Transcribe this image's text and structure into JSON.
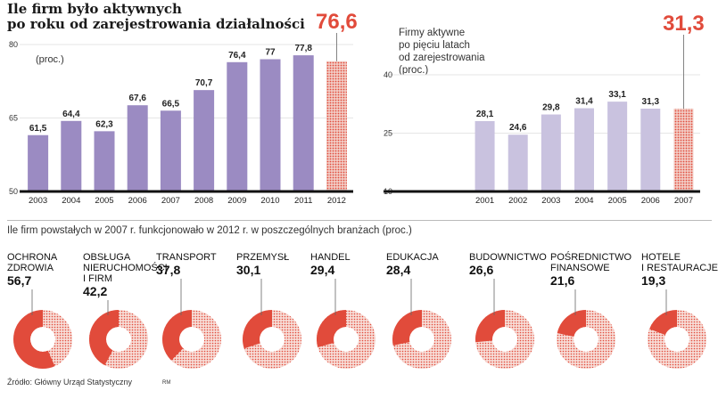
{
  "title": [
    "Ile firm było aktywnych",
    "po roku od zarejestrowania działalności"
  ],
  "colors": {
    "bar_main": "#9b8bc2",
    "bar_light": "#c9c2df",
    "highlight": "#e14b3b",
    "dot_bg": "#f2cdc6",
    "axis": "#111111",
    "grid": "#e6e6e6"
  },
  "chart_data": [
    {
      "type": "bar",
      "ylabel": "(proc.)",
      "ylim": [
        50,
        80
      ],
      "yticks": [
        "50",
        "65",
        "80"
      ],
      "categories": [
        "2003",
        "2004",
        "2005",
        "2006",
        "2007",
        "2008",
        "2009",
        "2010",
        "2011",
        "2012"
      ],
      "values": [
        61.5,
        64.4,
        62.3,
        67.6,
        66.5,
        70.7,
        76.4,
        77,
        77.8,
        76.6
      ],
      "labels": [
        "61,5",
        "64,4",
        "62,3",
        "67,6",
        "66,5",
        "70,7",
        "76,4",
        "77",
        "77,8",
        "76,6"
      ],
      "highlight_index": 9
    },
    {
      "type": "bar",
      "subtitle": [
        "Firmy aktywne",
        "po pięciu latach",
        "od zarejestrowania",
        "(proc.)"
      ],
      "ylim": [
        10,
        40
      ],
      "yticks": [
        "10",
        "25",
        "40"
      ],
      "categories": [
        "2001",
        "2002",
        "2003",
        "2004",
        "2005",
        "2006",
        "2007"
      ],
      "values": [
        28.1,
        24.6,
        29.8,
        31.4,
        33.1,
        31.3,
        31.3
      ],
      "labels": [
        "28,1",
        "24,6",
        "29,8",
        "31,4",
        "33,1",
        "31,3",
        "31,3"
      ],
      "highlight_index": 6
    },
    {
      "type": "pie",
      "title": "Ile firm powstałych w 2007 r. funkcjonowało w 2012 r. w poszczególnych branżach (proc.)",
      "items": [
        {
          "name": [
            "OCHRONA",
            "ZDROWIA"
          ],
          "value": 56.7,
          "label": "56,7"
        },
        {
          "name": [
            "OBSŁUGA",
            "NIERUCHOMOŚCI",
            "I FIRM"
          ],
          "value": 42.2,
          "label": "42,2"
        },
        {
          "name": [
            "TRANSPORT"
          ],
          "value": 37.8,
          "label": "37,8"
        },
        {
          "name": [
            "PRZEMYSŁ"
          ],
          "value": 30.1,
          "label": "30,1"
        },
        {
          "name": [
            "HANDEL"
          ],
          "value": 29.4,
          "label": "29,4"
        },
        {
          "name": [
            "EDUKACJA"
          ],
          "value": 28.4,
          "label": "28,4"
        },
        {
          "name": [
            "BUDOWNICTWO"
          ],
          "value": 26.6,
          "label": "26,6"
        },
        {
          "name": [
            "POŚREDNICTWO",
            "FINANSOWE"
          ],
          "value": 21.6,
          "label": "21,6"
        },
        {
          "name": [
            "HOTELE",
            "I RESTAURACJE"
          ],
          "value": 19.3,
          "label": "19,3"
        }
      ]
    }
  ],
  "source": "Źródło: Główny Urząd Statystyczny",
  "initials": "RM"
}
